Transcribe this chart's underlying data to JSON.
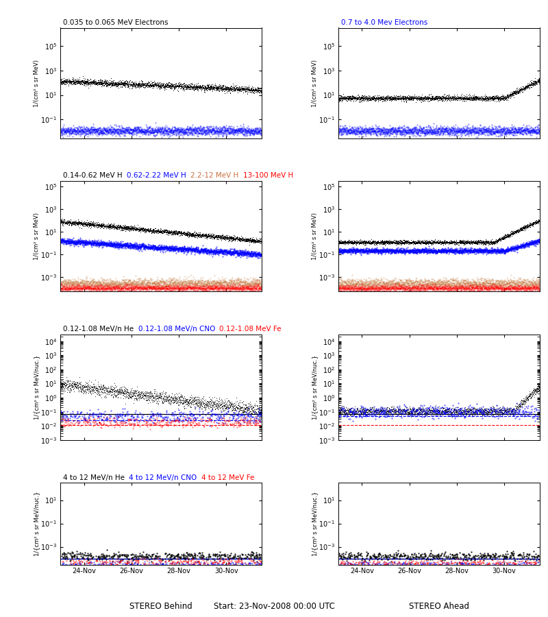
{
  "title_row1_left": "0.035 to 0.065 MeV Electrons",
  "title_row1_right": "0.7 to 4.0 Mev Electrons",
  "title_row1_left_color": "black",
  "title_row1_right_color": "blue",
  "title_row2_parts": [
    "0.14-0.62 MeV H",
    "0.62-2.22 MeV H",
    "2.2-12 MeV H",
    "13-100 MeV H"
  ],
  "title_row2_colors": [
    "black",
    "blue",
    "#c87040",
    "red"
  ],
  "title_row3_parts": [
    "0.12-1.08 MeV/n He",
    "0.12-1.08 MeV/n CNO",
    "0.12-1.08 MeV Fe"
  ],
  "title_row3_colors": [
    "black",
    "blue",
    "red"
  ],
  "title_row4_parts": [
    "4 to 12 MeV/n He",
    "4 to 12 MeV/n CNO",
    "4 to 12 MeV Fe"
  ],
  "title_row4_colors": [
    "black",
    "blue",
    "red"
  ],
  "xlabel_bottom": "Start: 23-Nov-2008 00:00 UTC",
  "xlabel_left": "STEREO Behind",
  "xlabel_right": "STEREO Ahead",
  "xtick_labels": [
    "24-Nov",
    "26-Nov",
    "28-Nov",
    "30-Nov"
  ],
  "ylabel_mev": "1/(cm² s sr MeV)",
  "ylabel_mevnuc": "1/{cm² s sr MeV/nuc.}",
  "fig_width": 8.0,
  "fig_height": 9.0,
  "row1_ylim": [
    0.003,
    3000000.0
  ],
  "row2_ylim": [
    5e-05,
    300000.0
  ],
  "row3_ylim": [
    0.001,
    30000.0
  ],
  "row4_ylim": [
    3e-05,
    300.0
  ]
}
